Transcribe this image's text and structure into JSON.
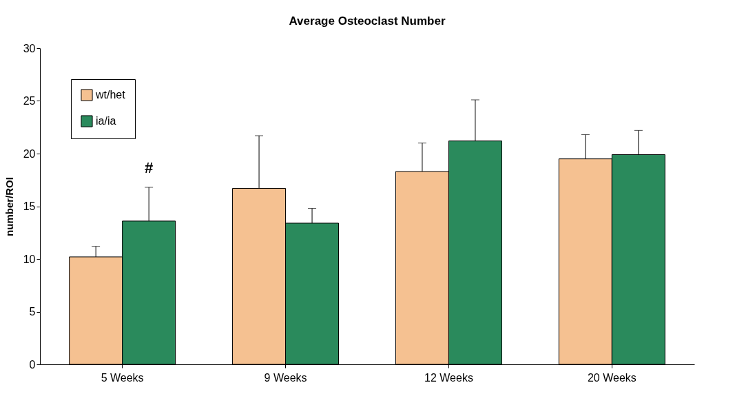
{
  "chart_data": {
    "type": "bar",
    "title": "Average Osteoclast Number",
    "ylabel": "number/ROI",
    "categories": [
      "5 Weeks",
      "9 Weeks",
      "12 Weeks",
      "20 Weeks"
    ],
    "series": [
      {
        "name": "wt/het",
        "color": "#f5c191",
        "values": [
          10.2,
          16.7,
          18.3,
          19.5
        ],
        "errors": [
          [
            10.2,
            11.2
          ],
          [
            16.7,
            21.7
          ],
          [
            18.3,
            21.0
          ],
          [
            19.5,
            21.8
          ]
        ]
      },
      {
        "name": "ia/ia",
        "color": "#2a8a5c",
        "values": [
          13.6,
          13.4,
          21.2,
          19.9
        ],
        "errors": [
          [
            13.6,
            16.8
          ],
          [
            13.4,
            14.8
          ],
          [
            21.2,
            25.1
          ],
          [
            19.9,
            22.2
          ]
        ]
      }
    ],
    "annotations": [
      "#"
    ],
    "ylim": [
      0,
      30
    ],
    "yticks": [
      0,
      5,
      10,
      15,
      20,
      25,
      30
    ],
    "grid": false,
    "legend": "top left"
  }
}
